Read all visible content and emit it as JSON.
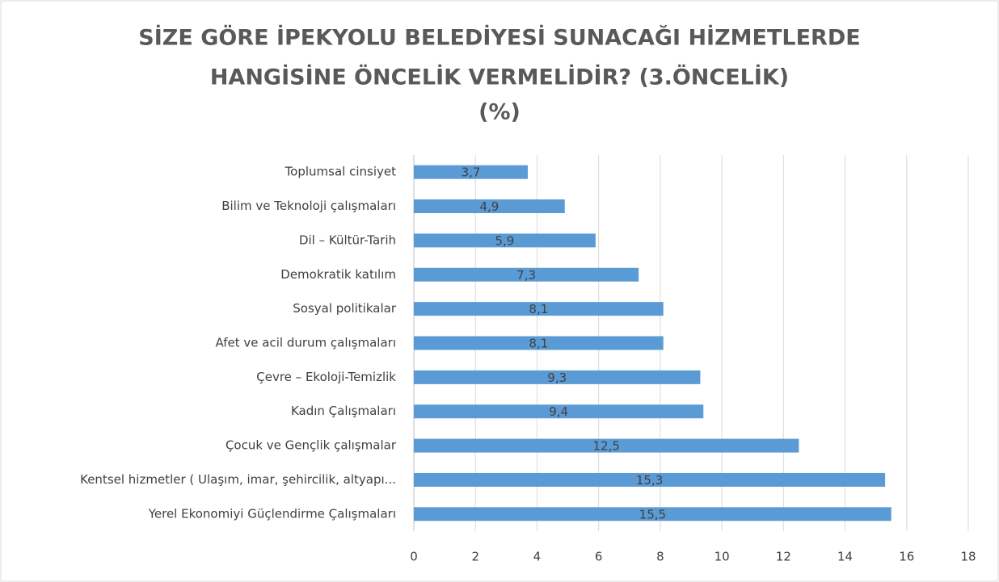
{
  "chart_data": {
    "type": "barh",
    "title": [
      "SİZE GÖRE  İPEKYOLU  BELEDİYESİ SUNACAĞI HİZMETLERDE",
      "HANGİSİNE ÖNCELİK VERMELİDİR? (3.ÖNCELİK)",
      "(%)"
    ],
    "categories": [
      "Toplumsal cinsiyet",
      "Bilim ve Teknoloji  çalışmaları",
      "Dil – Kültür-Tarih",
      "Demokratik katılım",
      "Sosyal politikalar",
      "Afet ve acil durum çalışmaları",
      "Çevre – Ekoloji-Temizlik",
      "Kadın Çalışmaları",
      "Çocuk ve Gençlik çalışmalar",
      "Kentsel hizmetler ( Ulaşım, imar, şehircilik, altyapı...",
      "Yerel Ekonomiyi Güçlendirme Çalışmaları"
    ],
    "values": [
      3.7,
      4.9,
      5.9,
      7.3,
      8.1,
      8.1,
      9.3,
      9.4,
      12.5,
      15.3,
      15.5
    ],
    "value_labels": [
      "3,7",
      "4,9",
      "5,9",
      "7,3",
      "8,1",
      "8,1",
      "9,3",
      "9,4",
      "12,5",
      "15,3",
      "15,5"
    ],
    "color": "#5b9bd5",
    "xlim": [
      0,
      18
    ],
    "xticks": [
      0,
      2,
      4,
      6,
      8,
      10,
      12,
      14,
      16,
      18
    ],
    "grid": true
  }
}
